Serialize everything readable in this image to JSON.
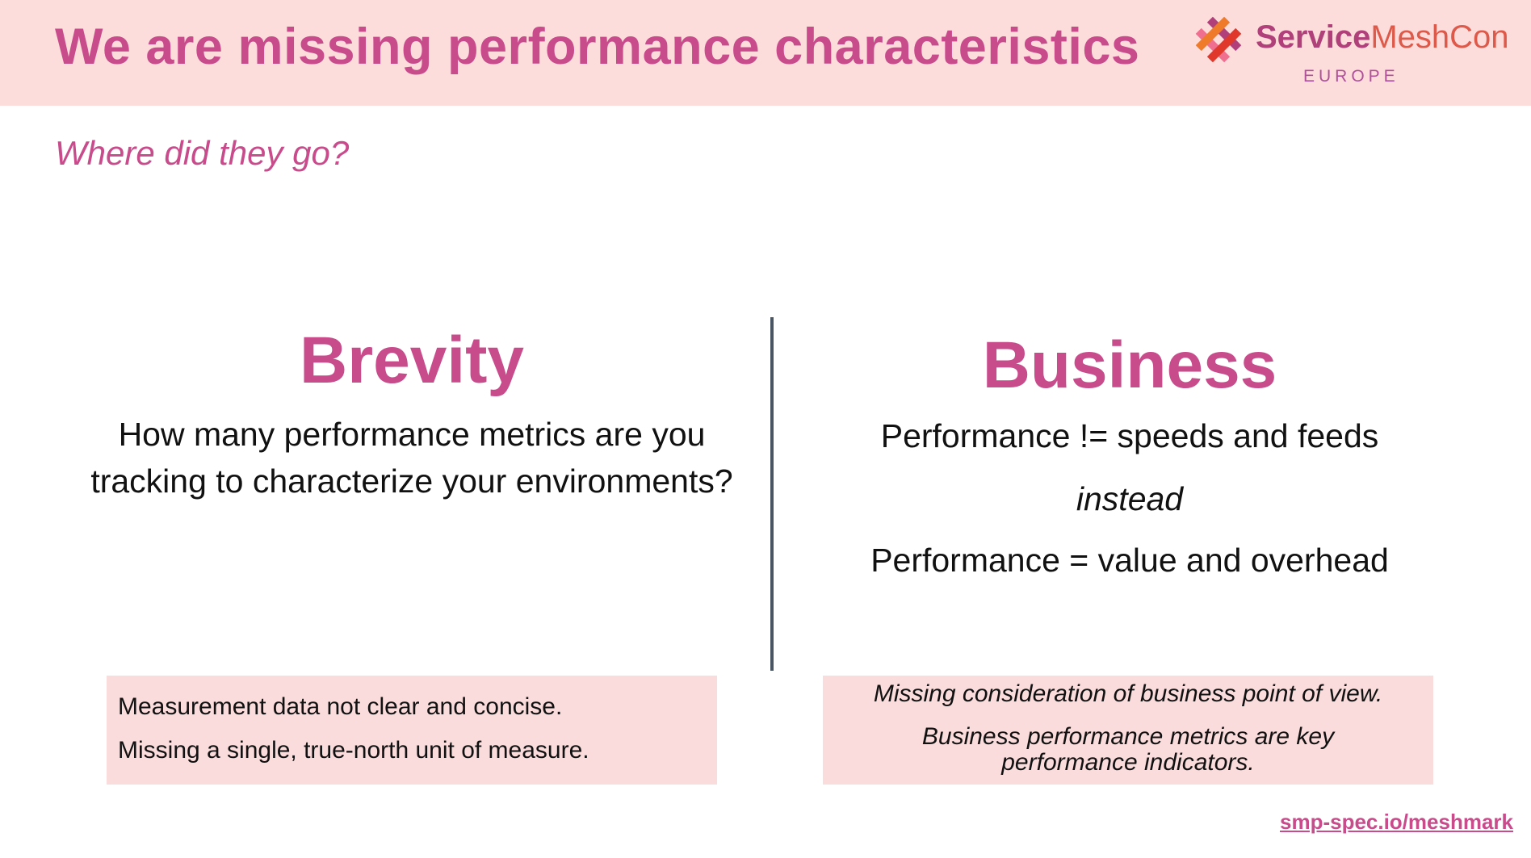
{
  "header": {
    "title": "We are missing performance characteristics",
    "logo": {
      "name_part1": "Service",
      "name_part2": "MeshCon",
      "region": "EUROPE",
      "colors": [
        "#e0382a",
        "#b0407a",
        "#ef7b2a",
        "#ee6f8f"
      ]
    }
  },
  "subtitle": "Where did they go?",
  "left": {
    "heading": "Brevity",
    "body": "How many performance metrics are you tracking to characterize your environments?",
    "box": [
      "Measurement data not clear and concise.",
      "Missing a single, true-north unit of measure."
    ]
  },
  "right": {
    "heading": "Business",
    "line1": "Performance != speeds and feeds",
    "line2": "instead",
    "line3": "Performance = value and overhead",
    "box": [
      "Missing consideration of business point of view.",
      "Business performance metrics are key performance indicators."
    ]
  },
  "footer": {
    "link": "smp-spec.io/meshmark"
  },
  "colors": {
    "accent": "#c84b8c",
    "header_bg": "#fddcdc",
    "box_bg": "#fbdcdc",
    "divider": "#4a5563"
  }
}
